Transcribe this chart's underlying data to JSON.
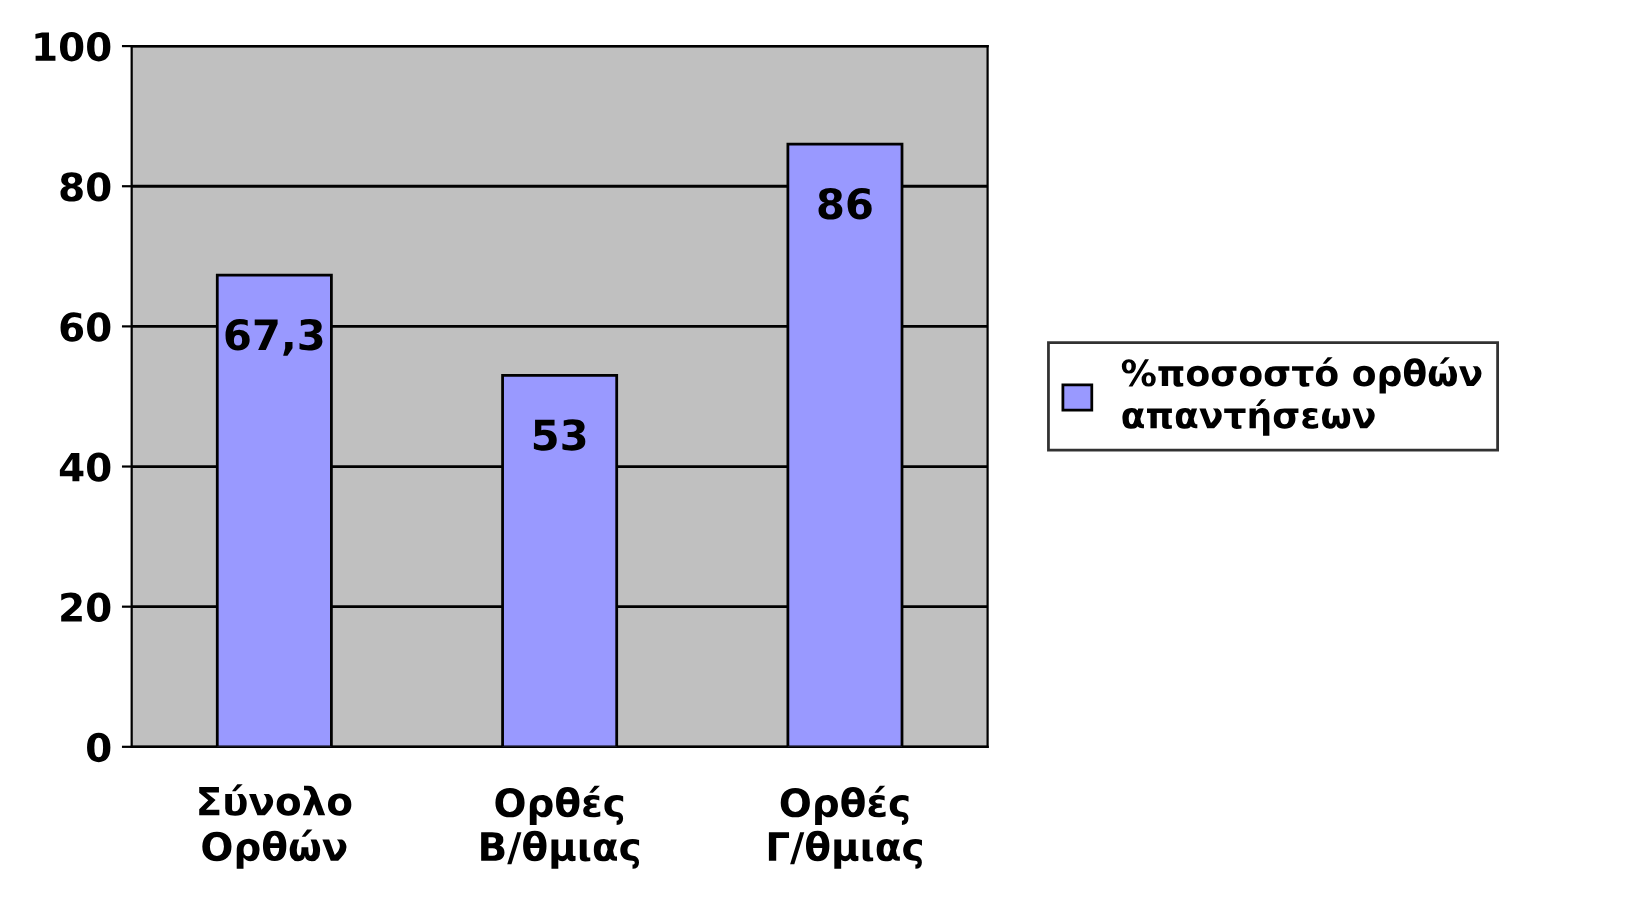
{
  "chart_data": {
    "type": "bar",
    "categories": [
      "Σύνολο Ορθών",
      "Ορθές Β/θμιας",
      "Ορθές Γ/θμιας"
    ],
    "series": [
      {
        "name": "%ποσοστό ορθών απαντήσεων",
        "color": "#9999ff",
        "values": [
          67.3,
          53,
          86
        ],
        "value_labels": [
          "67,3",
          "53",
          "86"
        ]
      }
    ],
    "ylim": [
      0,
      100
    ],
    "yticks": [
      0,
      20,
      40,
      60,
      80,
      100
    ],
    "grid": "y",
    "legend": "right"
  }
}
